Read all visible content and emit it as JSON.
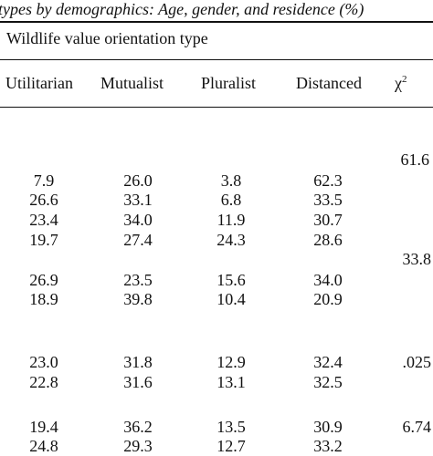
{
  "caption": "types by demographics: Age, gender, and residence (%)",
  "group_title": "Wildlife value orientation type",
  "columns": {
    "utilitarian": "Utilitarian",
    "mutualist": "Mutualist",
    "pluralist": "Pluralist",
    "distanced": "Distanced",
    "chi": "χ",
    "chi_sup": "2"
  },
  "chi_values": [
    "61.6",
    "33.8",
    ".025",
    "6.74"
  ],
  "rows": [
    [
      "7.9",
      "26.0",
      "3.8",
      "62.3"
    ],
    [
      "26.6",
      "33.1",
      "6.8",
      "33.5"
    ],
    [
      "23.4",
      "34.0",
      "11.9",
      "30.7"
    ],
    [
      "19.7",
      "27.4",
      "24.3",
      "28.6"
    ],
    [
      "26.9",
      "23.5",
      "15.6",
      "34.0"
    ],
    [
      "18.9",
      "39.8",
      "10.4",
      "20.9"
    ],
    [
      "23.0",
      "31.8",
      "12.9",
      "32.4"
    ],
    [
      "22.8",
      "31.6",
      "13.1",
      "32.5"
    ],
    [
      "19.4",
      "36.2",
      "13.5",
      "30.9"
    ],
    [
      "24.8",
      "29.3",
      "12.7",
      "33.2"
    ]
  ]
}
